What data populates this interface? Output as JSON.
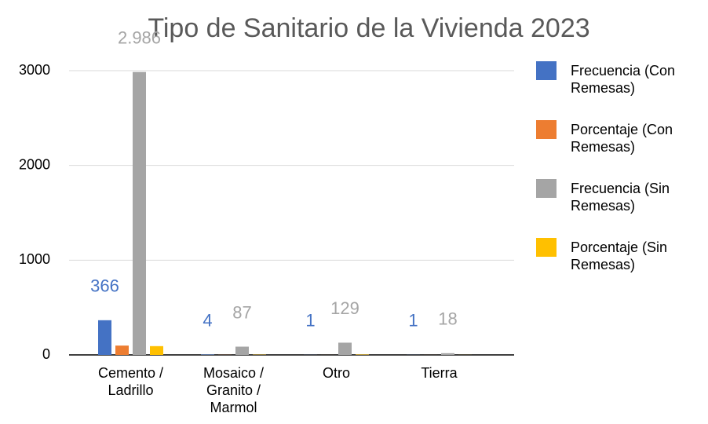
{
  "chart_data": {
    "type": "bar",
    "title": "Tipo de Sanitario de la Vivienda 2023",
    "categories": [
      "Cemento / Ladrillo",
      "Mosaico / Granito / Marmol",
      "Otro",
      "Tierra"
    ],
    "series": [
      {
        "name": "Frecuencia (Con Remesas)",
        "color": "#4472c4",
        "values": [
          366,
          4,
          1,
          1
        ],
        "show_labels": true
      },
      {
        "name": "Porcentaje (Con Remesas)",
        "color": "#ed7d31",
        "values": [
          98.4,
          1.1,
          0.3,
          0.3
        ],
        "show_labels": false
      },
      {
        "name": "Frecuencia (Sin Remesas)",
        "color": "#a5a5a5",
        "values": [
          2986,
          87,
          129,
          18
        ],
        "value_labels": [
          "2.986",
          "87",
          "129",
          "18"
        ],
        "show_labels": true
      },
      {
        "name": "Porcentaje (Sin Remesas)",
        "color": "#ffc000",
        "values": [
          92.7,
          2.7,
          4.0,
          0.6
        ],
        "show_labels": false
      }
    ],
    "ylim": [
      0,
      3000
    ],
    "yticks": [
      0,
      1000,
      2000,
      3000
    ],
    "grid": true,
    "legend": "right"
  }
}
